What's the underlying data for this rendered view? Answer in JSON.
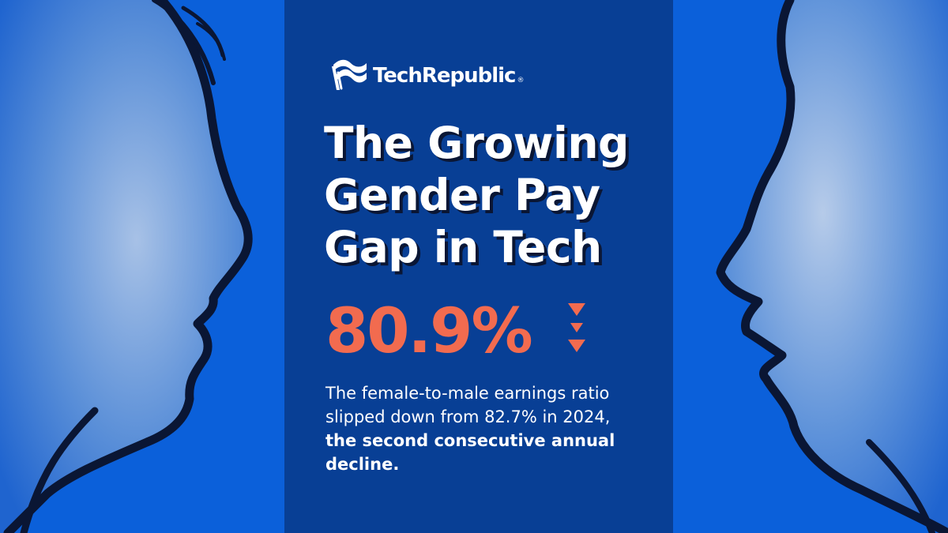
{
  "brand": {
    "name": "TechRepublic",
    "registered_mark": "®",
    "logo_icon": "flag-wave-icon"
  },
  "headline": {
    "line1": "The Growing",
    "line2": "Gender Pay",
    "line3": "Gap in Tech"
  },
  "stat": {
    "value": "80.9%",
    "trend_icon": "triple-down-arrow-icon"
  },
  "description": {
    "part1": "The female-to-male earnings ratio slipped down from 82.7% in 2024, ",
    "part2": "the second consecutive annual decline."
  },
  "colors": {
    "background_blue": "#0b60da",
    "panel_navy": "#083f95",
    "accent_orange": "#f26b4f",
    "shadow_navy": "#0a1634",
    "text_white": "#ffffff"
  }
}
